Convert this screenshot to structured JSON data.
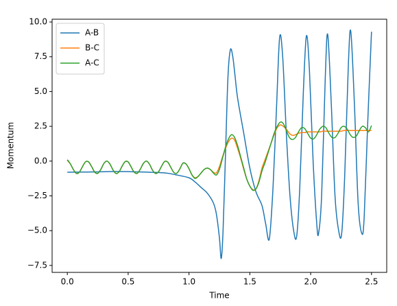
{
  "chart_data": {
    "type": "line",
    "xlabel": "Time",
    "ylabel": "Momentum",
    "xlim": [
      -0.125,
      2.625
    ],
    "ylim": [
      -8.0,
      10.2
    ],
    "xticks": [
      {
        "value": 0,
        "label": "0.0"
      },
      {
        "value": 0.5,
        "label": "0.5"
      },
      {
        "value": 1,
        "label": "1.0"
      },
      {
        "value": 1.5,
        "label": "1.5"
      },
      {
        "value": 2,
        "label": "2.0"
      },
      {
        "value": 2.5,
        "label": "2.5"
      }
    ],
    "yticks": [
      {
        "value": -7.5,
        "label": "−7.5"
      },
      {
        "value": -5,
        "label": "−5.0"
      },
      {
        "value": -2.5,
        "label": "−2.5"
      },
      {
        "value": 0,
        "label": "0.0"
      },
      {
        "value": 2.5,
        "label": "2.5"
      },
      {
        "value": 5,
        "label": "5.0"
      },
      {
        "value": 7.5,
        "label": "7.5"
      },
      {
        "value": 10,
        "label": "10.0"
      }
    ],
    "grid": false,
    "legend": "upper left",
    "series": [
      {
        "name": "A-B",
        "color": "#1f77b4",
        "x": [
          0,
          0.2,
          0.4,
          0.6,
          0.8,
          0.9,
          1.0,
          1.05,
          1.1,
          1.15,
          1.2,
          1.225,
          1.25,
          1.265,
          1.28,
          1.3,
          1.32,
          1.34,
          1.36,
          1.38,
          1.4,
          1.45,
          1.5,
          1.55,
          1.6,
          1.63,
          1.66,
          1.69,
          1.72,
          1.745,
          1.77,
          1.8,
          1.83,
          1.86,
          1.885,
          1.91,
          1.94,
          1.965,
          1.99,
          2.02,
          2.05,
          2.065,
          2.09,
          2.12,
          2.14,
          2.17,
          2.2,
          2.23,
          2.255,
          2.28,
          2.31,
          2.33,
          2.36,
          2.39,
          2.42,
          2.44,
          2.47,
          2.5
        ],
        "values": [
          -0.8,
          -0.78,
          -0.75,
          -0.78,
          -0.85,
          -1.0,
          -1.2,
          -1.5,
          -1.9,
          -2.3,
          -3.0,
          -3.8,
          -5.5,
          -7.0,
          -5.0,
          0.5,
          6.0,
          8.0,
          7.5,
          6.0,
          4.5,
          2.0,
          -0.5,
          -2.2,
          -3.2,
          -4.5,
          -5.6,
          -2.0,
          4.0,
          8.9,
          7.5,
          2.0,
          -2.5,
          -5.0,
          -5.4,
          -2.0,
          5.0,
          9.0,
          6.5,
          0.0,
          -4.5,
          -5.2,
          -2.5,
          6.0,
          9.1,
          4.0,
          -2.5,
          -5.0,
          -5.2,
          -1.0,
          7.0,
          9.3,
          4.0,
          -3.0,
          -5.2,
          -4.0,
          3.0,
          9.3
        ]
      },
      {
        "name": "B-C",
        "color": "#ff7f0e",
        "x": [
          0,
          0.025,
          0.05,
          0.075,
          0.1,
          0.125,
          0.15,
          0.175,
          0.2,
          0.225,
          0.25,
          0.275,
          0.3,
          0.325,
          0.35,
          0.375,
          0.4,
          0.425,
          0.45,
          0.475,
          0.5,
          0.525,
          0.55,
          0.575,
          0.6,
          0.625,
          0.65,
          0.675,
          0.7,
          0.725,
          0.75,
          0.775,
          0.8,
          0.825,
          0.85,
          0.875,
          0.9,
          0.925,
          0.95,
          0.975,
          1.0,
          1.025,
          1.05,
          1.075,
          1.1,
          1.125,
          1.15,
          1.175,
          1.2,
          1.225,
          1.25,
          1.275,
          1.3,
          1.325,
          1.35,
          1.375,
          1.4,
          1.425,
          1.45,
          1.475,
          1.5,
          1.525,
          1.55,
          1.575,
          1.6,
          1.625,
          1.65,
          1.675,
          1.7,
          1.725,
          1.75,
          1.775,
          1.8,
          1.825,
          1.85,
          1.875,
          1.9,
          1.925,
          1.95,
          1.975,
          2.0,
          2.025,
          2.05,
          2.075,
          2.1,
          2.125,
          2.15,
          2.175,
          2.2,
          2.225,
          2.25,
          2.275,
          2.3,
          2.325,
          2.35,
          2.375,
          2.4,
          2.425,
          2.45,
          2.475,
          2.5
        ],
        "values": [
          0.05,
          -0.2,
          -0.61,
          -0.89,
          -0.78,
          -0.39,
          -0.05,
          -0.06,
          -0.4,
          -0.79,
          -0.88,
          -0.6,
          -0.18,
          0.0,
          -0.21,
          -0.63,
          -0.89,
          -0.77,
          -0.37,
          -0.04,
          -0.06,
          -0.43,
          -0.8,
          -0.88,
          -0.58,
          -0.17,
          0.0,
          -0.22,
          -0.65,
          -0.89,
          -0.76,
          -0.36,
          -0.03,
          -0.07,
          -0.44,
          -0.81,
          -0.87,
          -0.56,
          -0.15,
          -0.2,
          -0.55,
          -1.0,
          -1.2,
          -1.1,
          -0.85,
          -0.6,
          -0.5,
          -0.6,
          -0.8,
          -0.85,
          -0.4,
          0.3,
          0.9,
          1.4,
          1.65,
          1.5,
          0.9,
          0.2,
          -0.6,
          -1.3,
          -1.8,
          -2.05,
          -2.0,
          -1.4,
          -0.5,
          0.1,
          0.7,
          1.3,
          1.9,
          2.4,
          2.6,
          2.5,
          2.3,
          2.0,
          1.85,
          1.9,
          2.0,
          2.05,
          2.05,
          2.1,
          2.1,
          2.1,
          2.1,
          2.1,
          2.15,
          2.15,
          2.15,
          2.15,
          2.15,
          2.15,
          2.15,
          2.2,
          2.2,
          2.2,
          2.2,
          2.2,
          2.2,
          2.2,
          2.2,
          2.2,
          2.2
        ]
      },
      {
        "name": "A-C",
        "color": "#2ca02c",
        "x": [
          0,
          0.025,
          0.05,
          0.075,
          0.1,
          0.125,
          0.15,
          0.175,
          0.2,
          0.225,
          0.25,
          0.275,
          0.3,
          0.325,
          0.35,
          0.375,
          0.4,
          0.425,
          0.45,
          0.475,
          0.5,
          0.525,
          0.55,
          0.575,
          0.6,
          0.625,
          0.65,
          0.675,
          0.7,
          0.725,
          0.75,
          0.775,
          0.8,
          0.825,
          0.85,
          0.875,
          0.9,
          0.925,
          0.95,
          0.975,
          1.0,
          1.025,
          1.05,
          1.075,
          1.1,
          1.125,
          1.15,
          1.175,
          1.2,
          1.225,
          1.25,
          1.275,
          1.3,
          1.325,
          1.35,
          1.375,
          1.4,
          1.425,
          1.45,
          1.475,
          1.5,
          1.525,
          1.55,
          1.575,
          1.6,
          1.625,
          1.65,
          1.675,
          1.7,
          1.725,
          1.75,
          1.775,
          1.8,
          1.825,
          1.85,
          1.875,
          1.9,
          1.925,
          1.95,
          1.975,
          2.0,
          2.025,
          2.05,
          2.075,
          2.1,
          2.125,
          2.15,
          2.175,
          2.2,
          2.225,
          2.25,
          2.275,
          2.3,
          2.325,
          2.35,
          2.375,
          2.4,
          2.425,
          2.45,
          2.475,
          2.5
        ],
        "values": [
          0.1,
          -0.2,
          -0.61,
          -0.89,
          -0.78,
          -0.39,
          -0.05,
          -0.06,
          -0.4,
          -0.79,
          -0.88,
          -0.6,
          -0.18,
          0.0,
          -0.21,
          -0.63,
          -0.89,
          -0.77,
          -0.37,
          -0.04,
          -0.06,
          -0.43,
          -0.8,
          -0.88,
          -0.58,
          -0.17,
          0.0,
          -0.22,
          -0.65,
          -0.89,
          -0.76,
          -0.36,
          -0.03,
          -0.07,
          -0.44,
          -0.81,
          -0.87,
          -0.56,
          -0.15,
          -0.2,
          -0.55,
          -1.0,
          -1.25,
          -1.1,
          -0.85,
          -0.6,
          -0.5,
          -0.6,
          -0.85,
          -1.0,
          -0.6,
          0.2,
          1.0,
          1.6,
          1.9,
          1.7,
          1.1,
          0.3,
          -0.5,
          -1.3,
          -1.8,
          -2.1,
          -2.0,
          -1.5,
          -0.7,
          -0.1,
          0.6,
          1.3,
          2.0,
          2.5,
          2.8,
          2.7,
          2.2,
          1.7,
          1.55,
          1.7,
          2.1,
          2.4,
          2.35,
          2.0,
          1.65,
          1.6,
          1.9,
          2.3,
          2.5,
          2.4,
          2.0,
          1.7,
          1.7,
          2.0,
          2.4,
          2.5,
          2.3,
          1.9,
          1.7,
          1.8,
          2.2,
          2.5,
          2.4,
          2.1,
          2.55
        ]
      }
    ]
  }
}
